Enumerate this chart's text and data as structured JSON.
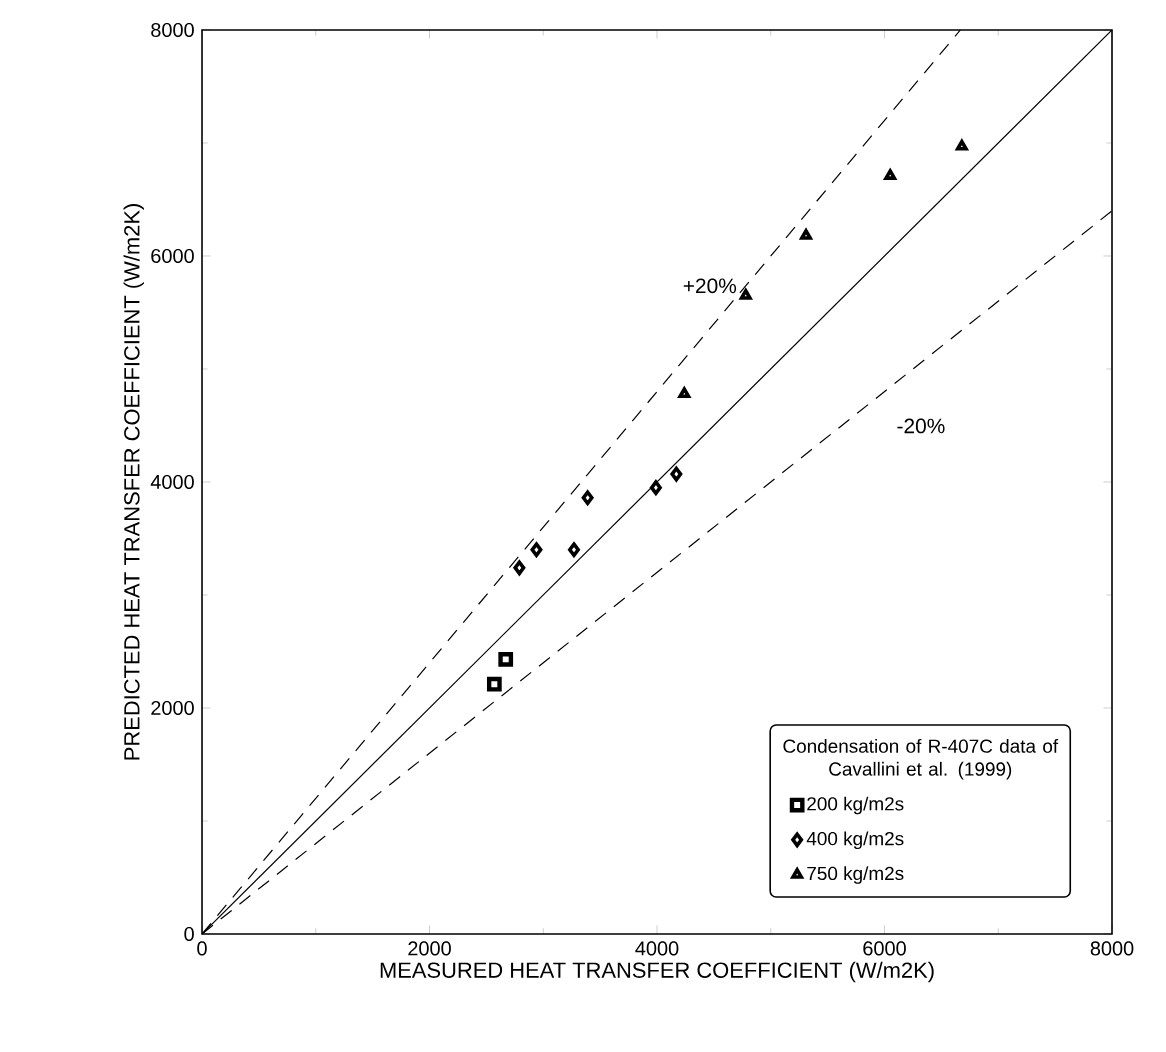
{
  "chart_data": {
    "type": "scatter",
    "xlabel": "MEASURED HEAT TRANSFER COEFFICIENT (W/m2K)",
    "ylabel": "PREDICTED HEAT TRANSFER COEFFICIENT (W/m2K)",
    "legend_title": "Condensation of R-407C data of Cavallini et al. (1999)",
    "xlim": [
      0,
      8000
    ],
    "ylim": [
      0,
      8000
    ],
    "xticks": [
      0,
      2000,
      4000,
      6000,
      8000
    ],
    "yticks": [
      0,
      2000,
      4000,
      6000,
      8000
    ],
    "legend": "bottom right",
    "grid": false,
    "series": [
      {
        "name": "200 kg/m2s",
        "color": "#000000",
        "marker": "square",
        "x": [
          2570,
          2670
        ],
        "values": [
          2210,
          2430
        ]
      },
      {
        "name": "400 kg/m2s",
        "color": "#000000",
        "marker": "diamond",
        "x": [
          2790,
          2940,
          3270,
          3390,
          3990,
          4170
        ],
        "values": [
          3240,
          3400,
          3400,
          3860,
          3950,
          4070
        ]
      },
      {
        "name": "750 kg/m2s",
        "color": "#000000",
        "marker": "triangle",
        "x": [
          4240,
          4780,
          5310,
          6050,
          6680
        ],
        "values": [
          4780,
          5650,
          6180,
          6710,
          6970
        ]
      },
      {
        "type": "line",
        "color": "#000000",
        "line_style": "solid",
        "marker": "none",
        "x": [
          0,
          8000
        ],
        "values": [
          0,
          8000
        ]
      },
      {
        "type": "line",
        "color": "#000000",
        "line_style": "dashed",
        "marker": "none",
        "x": [
          0,
          6667
        ],
        "values": [
          0,
          8000
        ]
      },
      {
        "type": "line",
        "color": "#000000",
        "line_style": "dashed",
        "marker": "none",
        "x": [
          0,
          8000
        ],
        "values": [
          0,
          6400
        ]
      }
    ],
    "annotations": [
      "+20%",
      "-20%"
    ]
  }
}
